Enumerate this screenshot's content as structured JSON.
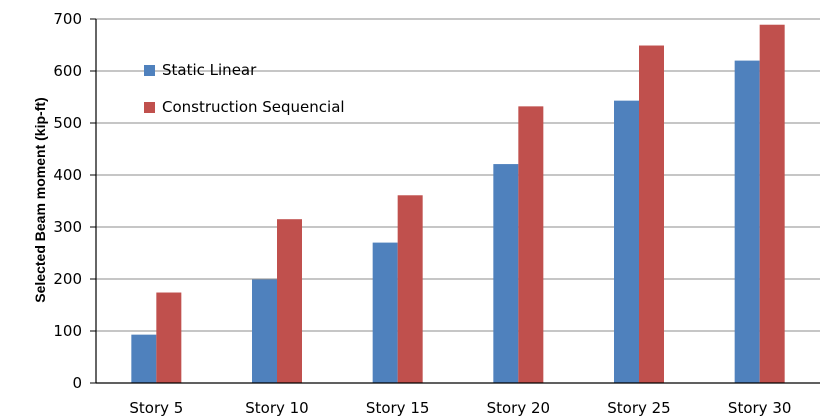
{
  "chart_data": {
    "type": "bar",
    "title": "",
    "xlabel": "",
    "ylabel": "Selected Beam moment (kip-ft)",
    "ylim": [
      0,
      700
    ],
    "yticks": [
      0,
      100,
      200,
      300,
      400,
      500,
      600,
      700
    ],
    "grid": true,
    "legend_position": "top-left",
    "categories": [
      "Story 5",
      "Story 10",
      "Story 15",
      "Story 20",
      "Story 25",
      "Story 30"
    ],
    "series": [
      {
        "name": "Static Linear",
        "color": "#4f81bd",
        "values": [
          93,
          199,
          270,
          421,
          543,
          620
        ]
      },
      {
        "name": "Construction Sequencial",
        "color": "#c0504d",
        "values": [
          174,
          315,
          361,
          532,
          649,
          689
        ]
      }
    ]
  }
}
